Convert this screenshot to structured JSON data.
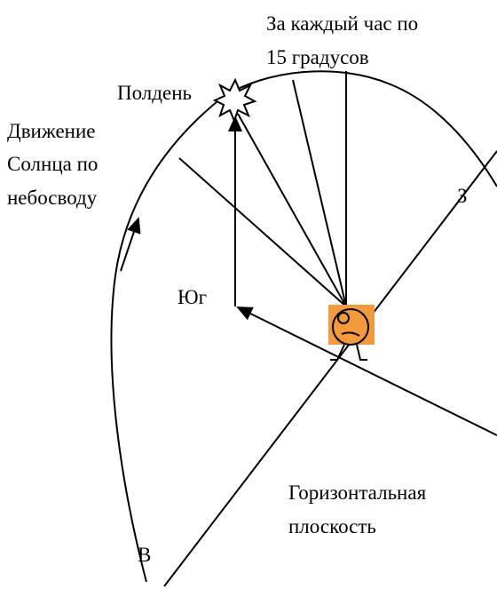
{
  "labels": {
    "hour_caption": [
      "За каждый час по",
      "15 градусов"
    ],
    "noon": "Полдень",
    "sun_motion": [
      "Движение",
      "Солнца по",
      "небосводу"
    ],
    "west": "З",
    "south": "Юг",
    "plane": [
      "Горизонтальная",
      "плоскость"
    ],
    "east": "В"
  }
}
